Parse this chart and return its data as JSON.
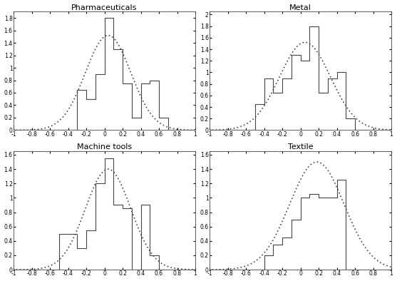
{
  "subplots": [
    {
      "title": "Pharmaceuticals",
      "bin_edges": [
        -1.0,
        -0.9,
        -0.8,
        -0.7,
        -0.6,
        -0.5,
        -0.4,
        -0.3,
        -0.2,
        -0.1,
        0.0,
        0.1,
        0.2,
        0.3,
        0.4,
        0.5,
        0.6,
        0.7,
        0.8,
        0.9,
        1.0
      ],
      "bar_heights": [
        0.0,
        0.0,
        0.0,
        0.0,
        0.0,
        0.0,
        0.0,
        0.65,
        0.5,
        0.9,
        1.8,
        1.3,
        0.75,
        0.2,
        0.75,
        0.8,
        0.2,
        0.0,
        0.0,
        0.0
      ],
      "gauss_mu": 0.04,
      "gauss_sigma": 0.25,
      "gauss_scale": 1.52,
      "ylim": [
        0,
        1.9
      ],
      "yticks": [
        0,
        0.2,
        0.4,
        0.6,
        0.8,
        1.0,
        1.2,
        1.4,
        1.6,
        1.8
      ]
    },
    {
      "title": "Metal",
      "bin_edges": [
        -1.0,
        -0.9,
        -0.8,
        -0.7,
        -0.6,
        -0.5,
        -0.4,
        -0.3,
        -0.2,
        -0.1,
        0.0,
        0.1,
        0.2,
        0.3,
        0.4,
        0.5,
        0.6,
        0.7,
        0.8,
        0.9,
        1.0
      ],
      "bar_heights": [
        0.0,
        0.0,
        0.0,
        0.0,
        0.0,
        0.45,
        0.9,
        0.65,
        0.9,
        1.3,
        1.2,
        1.8,
        0.65,
        0.9,
        1.0,
        0.2,
        0.0,
        0.0,
        0.0,
        0.0
      ],
      "gauss_mu": 0.05,
      "gauss_sigma": 0.28,
      "gauss_scale": 1.52,
      "ylim": [
        0,
        2.05
      ],
      "yticks": [
        0,
        0.2,
        0.4,
        0.6,
        0.8,
        1.0,
        1.2,
        1.4,
        1.6,
        1.8,
        2.0
      ]
    },
    {
      "title": "Machine tools",
      "bin_edges": [
        -1.0,
        -0.9,
        -0.8,
        -0.7,
        -0.6,
        -0.5,
        -0.4,
        -0.3,
        -0.2,
        -0.1,
        0.0,
        0.1,
        0.2,
        0.3,
        0.4,
        0.5,
        0.6,
        0.7,
        0.8,
        0.9,
        1.0
      ],
      "bar_heights": [
        0.0,
        0.0,
        0.0,
        0.0,
        0.0,
        0.5,
        0.5,
        0.3,
        0.55,
        1.2,
        1.55,
        0.9,
        0.85,
        0.0,
        0.9,
        0.2,
        0.0,
        0.0,
        0.0,
        0.0
      ],
      "gauss_mu": 0.04,
      "gauss_sigma": 0.25,
      "gauss_scale": 1.4,
      "ylim": [
        0,
        1.65
      ],
      "yticks": [
        0,
        0.2,
        0.4,
        0.6,
        0.8,
        1.0,
        1.2,
        1.4,
        1.6
      ]
    },
    {
      "title": "Textile",
      "bin_edges": [
        -1.0,
        -0.9,
        -0.8,
        -0.7,
        -0.6,
        -0.5,
        -0.4,
        -0.3,
        -0.2,
        -0.1,
        0.0,
        0.1,
        0.2,
        0.3,
        0.4,
        0.5,
        0.6,
        0.7,
        0.8,
        0.9,
        1.0
      ],
      "bar_heights": [
        0.0,
        0.0,
        0.0,
        0.0,
        0.0,
        0.0,
        0.2,
        0.35,
        0.45,
        0.7,
        1.0,
        1.05,
        1.0,
        1.0,
        1.25,
        0.0,
        0.0,
        0.0,
        0.0,
        0.0
      ],
      "gauss_mu": 0.18,
      "gauss_sigma": 0.3,
      "gauss_scale": 1.5,
      "ylim": [
        0,
        1.65
      ],
      "yticks": [
        0,
        0.2,
        0.4,
        0.6,
        0.8,
        1.0,
        1.2,
        1.4,
        1.6
      ]
    }
  ],
  "xlim": [
    -1,
    1
  ],
  "xticks": [
    -1,
    -0.8,
    -0.6,
    -0.4,
    -0.2,
    0,
    0.2,
    0.4,
    0.6,
    0.8,
    1
  ],
  "xtick_labels": [
    "-1",
    "-0.8",
    "-0.6",
    "-0.4",
    "-0.2",
    "0",
    "0.2",
    "0.4",
    "0.6",
    "0.8",
    "1"
  ],
  "line_color": "#444444",
  "background_color": "#ffffff"
}
